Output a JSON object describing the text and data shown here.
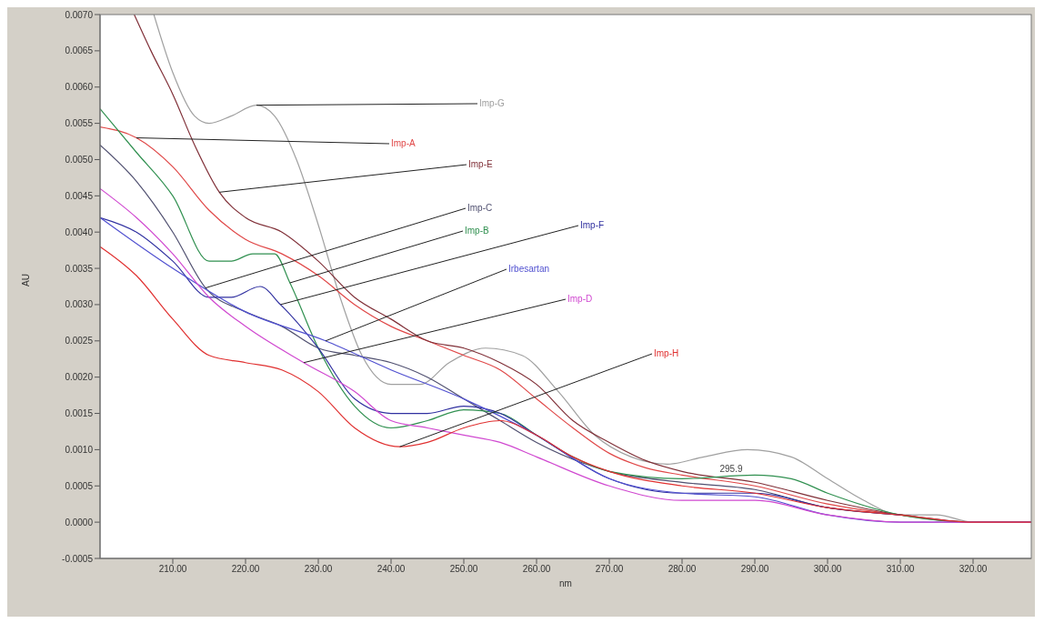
{
  "chart_data": {
    "type": "line",
    "xlabel": "nm",
    "ylabel": "AU",
    "xlim": [
      200,
      328
    ],
    "ylim": [
      -0.0005,
      0.007
    ],
    "xticks": [
      {
        "value": 210,
        "label": "210.00"
      },
      {
        "value": 220,
        "label": "220.00"
      },
      {
        "value": 230,
        "label": "230.00"
      },
      {
        "value": 240,
        "label": "240.00"
      },
      {
        "value": 250,
        "label": "250.00"
      },
      {
        "value": 260,
        "label": "260.00"
      },
      {
        "value": 270,
        "label": "270.00"
      },
      {
        "value": 280,
        "label": "280.00"
      },
      {
        "value": 290,
        "label": "290.00"
      },
      {
        "value": 300,
        "label": "300.00"
      },
      {
        "value": 310,
        "label": "310.00"
      },
      {
        "value": 320,
        "label": "320.00"
      }
    ],
    "yticks": [
      {
        "value": -0.0005,
        "label": "-0.0005"
      },
      {
        "value": 0,
        "label": "0.0000"
      },
      {
        "value": 0.0005,
        "label": "0.0005"
      },
      {
        "value": 0.001,
        "label": "0.0010"
      },
      {
        "value": 0.0015,
        "label": "0.0015"
      },
      {
        "value": 0.002,
        "label": "0.0020"
      },
      {
        "value": 0.0025,
        "label": "0.0025"
      },
      {
        "value": 0.003,
        "label": "0.0030"
      },
      {
        "value": 0.0035,
        "label": "0.0035"
      },
      {
        "value": 0.004,
        "label": "0.0040"
      },
      {
        "value": 0.0045,
        "label": "0.0045"
      },
      {
        "value": 0.005,
        "label": "0.0050"
      },
      {
        "value": 0.0055,
        "label": "0.0055"
      },
      {
        "value": 0.006,
        "label": "0.0060"
      },
      {
        "value": 0.0065,
        "label": "0.0065"
      },
      {
        "value": 0.007,
        "label": "0.0070"
      }
    ],
    "marker": "none",
    "line_style": "solid",
    "series": [
      {
        "name": "Imp-G",
        "color": "#a0a0a0",
        "x": [
          207.4,
          210,
          213,
          215,
          218,
          221.5,
          224,
          227,
          230,
          233,
          236,
          240,
          244,
          248,
          253,
          258,
          263,
          268,
          273,
          278,
          283,
          289,
          295,
          300,
          305,
          310,
          315,
          320,
          328
        ],
        "values": [
          0.007,
          0.0062,
          0.0056,
          0.0055,
          0.0056,
          0.00575,
          0.0056,
          0.005,
          0.0041,
          0.0031,
          0.0023,
          0.0019,
          0.0019,
          0.0022,
          0.0024,
          0.0023,
          0.0018,
          0.0012,
          0.0009,
          0.0008,
          0.0009,
          0.001,
          0.0009,
          0.0006,
          0.0003,
          0.0001,
          0.0001,
          0,
          0
        ]
      },
      {
        "name": "Imp-A",
        "color": "#e04848",
        "x": [
          200,
          205,
          210,
          215,
          220,
          225,
          230,
          235,
          240,
          245,
          250,
          255,
          260,
          265,
          270,
          275,
          280,
          290,
          300,
          310,
          320,
          328
        ],
        "values": [
          0.00545,
          0.0053,
          0.0049,
          0.0043,
          0.0039,
          0.0037,
          0.0034,
          0.003,
          0.0027,
          0.0025,
          0.0023,
          0.0021,
          0.0017,
          0.0013,
          0.00095,
          0.00075,
          0.00065,
          0.0005,
          0.00025,
          0.0001,
          0,
          0
        ]
      },
      {
        "name": "Imp-E",
        "color": "#803038",
        "x": [
          204.7,
          207,
          210,
          213,
          216.4,
          220,
          225,
          230,
          235,
          240,
          245,
          250,
          255,
          260,
          265,
          270,
          275,
          280,
          290,
          300,
          310,
          320,
          328
        ],
        "values": [
          0.007,
          0.0065,
          0.0059,
          0.0052,
          0.00455,
          0.0042,
          0.004,
          0.0036,
          0.0031,
          0.0028,
          0.0025,
          0.0024,
          0.0022,
          0.0019,
          0.0014,
          0.0011,
          0.00085,
          0.0007,
          0.00055,
          0.0003,
          0.0001,
          0,
          0
        ]
      },
      {
        "name": "Imp-C",
        "color": "#505070",
        "x": [
          200,
          205,
          210,
          214.5,
          220,
          225,
          230,
          235,
          240,
          245,
          250,
          255,
          260,
          270,
          280,
          290,
          300,
          310,
          320,
          328
        ],
        "values": [
          0.0052,
          0.0047,
          0.004,
          0.00323,
          0.0029,
          0.0027,
          0.0024,
          0.0023,
          0.0022,
          0.002,
          0.0017,
          0.0014,
          0.0011,
          0.0007,
          0.00055,
          0.00045,
          0.0002,
          0.0001,
          0,
          0
        ]
      },
      {
        "name": "Imp-B",
        "color": "#309050",
        "x": [
          200,
          205,
          210,
          215,
          218,
          221,
          224,
          226.1,
          230,
          235,
          240,
          245,
          250,
          255,
          260,
          265,
          270,
          280,
          290,
          295,
          300,
          310,
          320,
          328
        ],
        "values": [
          0.0057,
          0.0051,
          0.0045,
          0.0036,
          0.0036,
          0.0037,
          0.0037,
          0.0033,
          0.0024,
          0.0016,
          0.0013,
          0.0014,
          0.00155,
          0.0015,
          0.0012,
          0.0009,
          0.0007,
          0.0006,
          0.00065,
          0.0006,
          0.0004,
          0.0001,
          0,
          0
        ]
      },
      {
        "name": "Imp-F",
        "color": "#3030a0",
        "x": [
          200,
          205,
          210,
          215,
          218,
          222,
          224.8,
          230,
          235,
          240,
          245,
          250,
          255,
          260,
          270,
          280,
          290,
          300,
          310
        ],
        "values": [
          0.0042,
          0.004,
          0.0036,
          0.0031,
          0.0031,
          0.00325,
          0.003,
          0.0024,
          0.0017,
          0.0015,
          0.0015,
          0.0016,
          0.0015,
          0.0012,
          0.0006,
          0.0004,
          0.0004,
          0.0002,
          0.0001
        ]
      },
      {
        "name": "Irbesartan",
        "color": "#5050d0",
        "x": [
          200,
          210,
          220,
          231,
          240,
          250,
          260,
          270,
          280,
          290,
          300,
          310,
          320,
          328
        ],
        "values": [
          0.0042,
          0.0035,
          0.0029,
          0.0025,
          0.0021,
          0.0017,
          0.0012,
          0.0006,
          0.0004,
          0.00035,
          0.0001,
          0,
          0,
          0
        ]
      },
      {
        "name": "Imp-D",
        "color": "#d048d0",
        "x": [
          200,
          205,
          210,
          215,
          220,
          228,
          235,
          240,
          245,
          250,
          255,
          260,
          270,
          280,
          290,
          300,
          310,
          320,
          328
        ],
        "values": [
          0.0046,
          0.0042,
          0.0037,
          0.0031,
          0.0027,
          0.0022,
          0.0018,
          0.0014,
          0.0013,
          0.0012,
          0.0011,
          0.0009,
          0.0005,
          0.0003,
          0.0003,
          0.0001,
          0,
          0,
          0
        ]
      },
      {
        "name": "Imp-H",
        "color": "#e03030",
        "x": [
          200,
          205,
          210,
          215,
          220,
          225,
          230,
          235,
          241.2,
          245,
          250,
          255,
          260,
          265,
          270,
          280,
          290,
          300,
          310,
          320,
          328
        ],
        "values": [
          0.0038,
          0.0034,
          0.0028,
          0.0023,
          0.0022,
          0.0021,
          0.0018,
          0.0013,
          0.00104,
          0.0011,
          0.0013,
          0.0014,
          0.0012,
          0.0009,
          0.0007,
          0.0005,
          0.0004,
          0.0002,
          0.0001,
          0,
          0
        ]
      }
    ],
    "annotations": [
      "295.9"
    ]
  }
}
